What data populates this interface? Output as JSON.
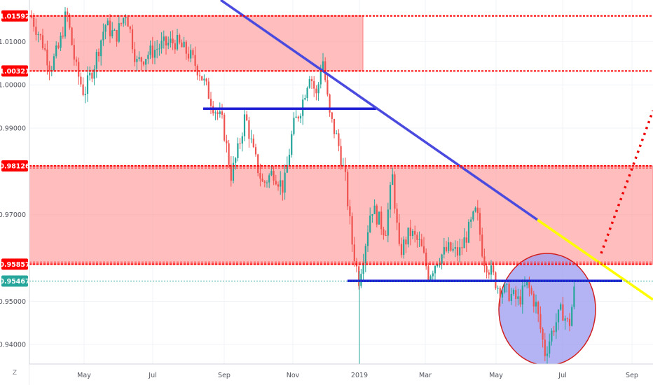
{
  "chart_data": {
    "type": "candlestick",
    "title": "",
    "xlabel": "",
    "ylabel": "",
    "ylim": [
      0.9355,
      1.0196
    ],
    "x_ticks": [
      "May",
      "Jul",
      "Sep",
      "Nov",
      "2019",
      "Mar",
      "May",
      "Jul",
      "Sep"
    ],
    "y_ticks": [
      "1.01000",
      "1.00000",
      "0.99000",
      "0.97000",
      "0.95000",
      "0.94000"
    ],
    "price_levels": [
      {
        "label": "1.01592",
        "value": 1.01592,
        "color": "#ff0000"
      },
      {
        "label": "1.00321",
        "value": 1.00321,
        "color": "#ff0000"
      },
      {
        "label": "0.98126",
        "value": 0.98126,
        "color": "#ff0000"
      },
      {
        "label": "0.95857",
        "value": 0.95857,
        "color": "#ff0000"
      },
      {
        "label": "0.95467",
        "value": 0.95467,
        "color": "#26a69a"
      }
    ],
    "zones": [
      {
        "top": 1.01592,
        "bottom": 1.00321,
        "color": "#ff9999"
      },
      {
        "top": 0.98126,
        "bottom": 0.95857,
        "color": "#ff9999"
      }
    ],
    "support_lines": [
      {
        "value": 0.9945,
        "color": "#1f1fd6"
      },
      {
        "value": 0.9547,
        "color": "#1f1fd6"
      }
    ],
    "trendline": {
      "color": "#4a4adf",
      "projection_color": "#ffff00"
    },
    "projection_color": "#ee0000",
    "highlight_circle": {
      "fill": "#9b9bf0",
      "stroke": "#d02020"
    },
    "up_color": "#26a69a",
    "down_color": "#ef5350",
    "axis_badge": "Z"
  }
}
